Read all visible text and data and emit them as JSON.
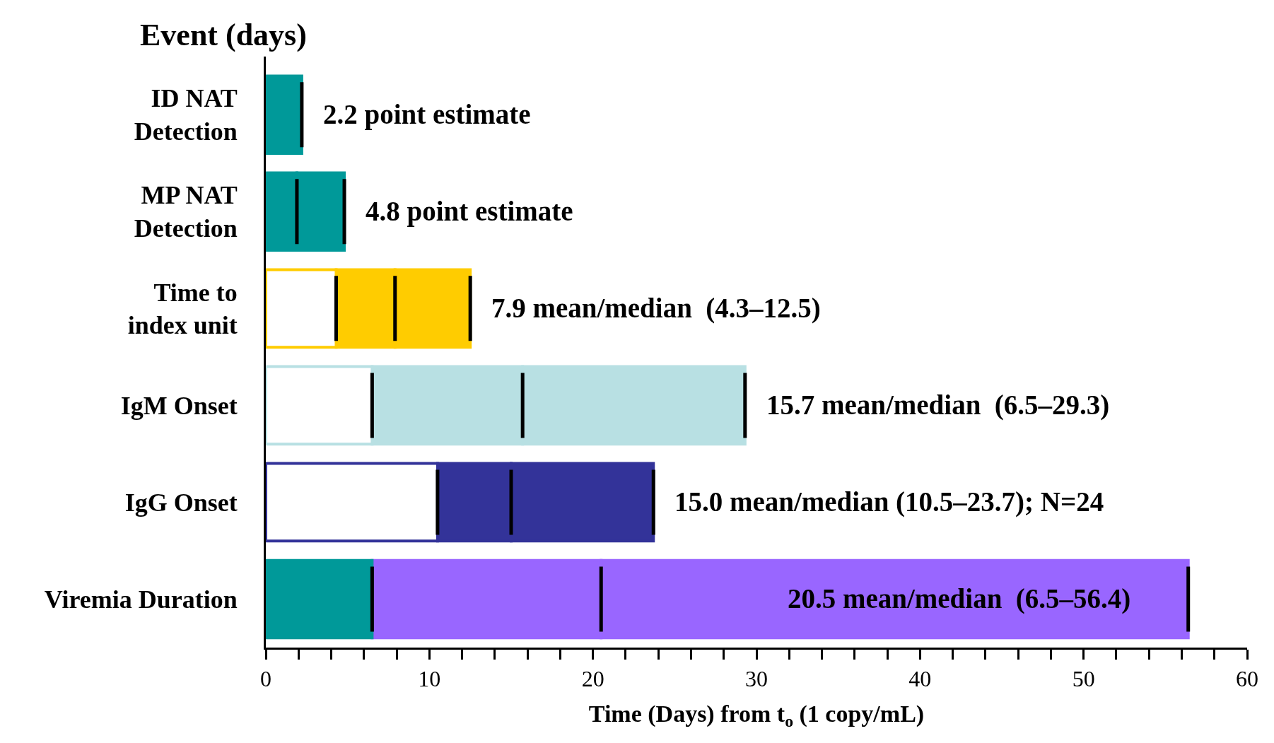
{
  "chart_data": {
    "type": "bar",
    "orientation": "horizontal",
    "stacked": true,
    "ylabel": "Event (days)",
    "xlabel": "Time (Days) from t$_{o}$ (1 copy/mL)",
    "categories": [
      "ID NAT\nDetection",
      "MP NAT\nDetection",
      "Time to\nindex unit",
      "IgM Onset",
      "IgG Onset",
      "Viremia Duration"
    ],
    "series": [
      {
        "colors": [
          "#009999",
          "#009999",
          "#ffffff",
          "#ffffff",
          "#ffffff",
          "#009999"
        ],
        "values": [
          2.2,
          1.9,
          4.3,
          6.5,
          10.5,
          6.5
        ],
        "errors": [
          0,
          0,
          0,
          0,
          0,
          0
        ]
      },
      {
        "colors": [
          "#009999",
          "#009999",
          "#ffcc00",
          "#b8e0e3",
          "#333399",
          "#9966ff"
        ],
        "values": [
          null,
          2.9,
          3.6,
          9.2,
          4.5,
          14.0
        ],
        "errors": [
          null,
          0,
          0,
          0,
          0,
          0
        ]
      },
      {
        "colors": [
          "#009999",
          "#009999",
          "#ffcc00",
          "#b8e0e3",
          "#333399",
          "#9966ff"
        ],
        "values": [
          null,
          null,
          4.6,
          13.6,
          8.7,
          35.9
        ],
        "errors": [
          null,
          null,
          0,
          0,
          0,
          0
        ]
      }
    ],
    "xlim": [
      0,
      60
    ],
    "xticks": [
      0,
      {
        "value": 2,
        "label": null
      },
      {
        "value": 4,
        "label": null
      },
      {
        "value": 6,
        "label": null
      },
      {
        "value": 8,
        "label": null
      },
      10,
      {
        "value": 12,
        "label": null
      },
      {
        "value": 14,
        "label": null
      },
      {
        "value": 16,
        "label": null
      },
      {
        "value": 18,
        "label": null
      },
      20,
      {
        "value": 22,
        "label": null
      },
      {
        "value": 24,
        "label": null
      },
      {
        "value": 26,
        "label": null
      },
      {
        "value": 28,
        "label": null
      },
      30,
      {
        "value": 32,
        "label": null
      },
      {
        "value": 34,
        "label": null
      },
      {
        "value": 36,
        "label": null
      },
      {
        "value": 38,
        "label": null
      },
      40,
      {
        "value": 42,
        "label": null
      },
      {
        "value": 44,
        "label": null
      },
      {
        "value": 46,
        "label": null
      },
      {
        "value": 48,
        "label": null
      },
      50,
      {
        "value": 52,
        "label": null
      },
      {
        "value": 54,
        "label": null
      },
      {
        "value": 56,
        "label": null
      },
      {
        "value": 58,
        "label": null
      },
      60
    ],
    "annotations": [
      {
        "text": "2.2 point estimate",
        "x": 2.2,
        "y": "ID NAT\nDetection"
      },
      {
        "text": "4.8 point estimate",
        "x": 4.8,
        "y": "MP NAT\nDetection"
      },
      {
        "text": "7.9 mean/median  (4.3–12.5)",
        "x": 12.5,
        "y": "Time to\nindex unit"
      },
      {
        "text": "15.7 mean/median  (6.5–29.3)",
        "x": 29.3,
        "y": "IgM Onset"
      },
      {
        "text": "15.0 mean/median (10.5–23.7); N=24",
        "x": 23.7,
        "y": "IgG Onset"
      },
      {
        "text": "20.5 mean/median  (6.5–56.4)",
        "x": 56.4,
        "y": "Viremia Duration"
      }
    ],
    "grid": false
  }
}
